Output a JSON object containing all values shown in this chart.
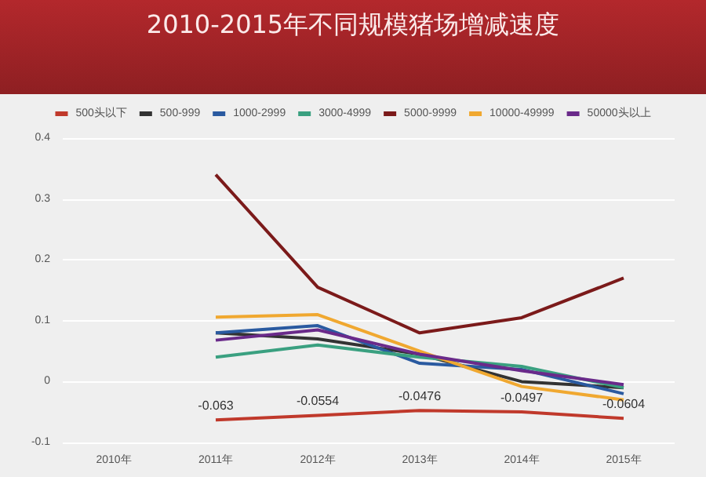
{
  "chart_data": {
    "type": "line",
    "title": "2010-2015年不同规模猪场增减速度",
    "categories": [
      "2010年",
      "2011年",
      "2012年",
      "2013年",
      "2014年",
      "2015年"
    ],
    "series": [
      {
        "name": "500头以下",
        "color": "#c0392b",
        "values": [
          null,
          -0.063,
          -0.0554,
          -0.0476,
          -0.0497,
          -0.0604
        ],
        "value_labels": [
          null,
          "-0.063",
          "-0.0554",
          "-0.0476",
          "-0.0497",
          "-0.0604"
        ]
      },
      {
        "name": "500-999",
        "color": "#333333",
        "values": [
          null,
          0.08,
          0.07,
          0.045,
          0.0,
          -0.01
        ]
      },
      {
        "name": "1000-2999",
        "color": "#2a5aa0",
        "values": [
          null,
          0.08,
          0.092,
          0.03,
          0.02,
          -0.02
        ]
      },
      {
        "name": "3000-4999",
        "color": "#3aa080",
        "values": [
          null,
          0.04,
          0.06,
          0.04,
          0.025,
          -0.01
        ]
      },
      {
        "name": "5000-9999",
        "color": "#7b1a1a",
        "values": [
          null,
          0.34,
          0.155,
          0.08,
          0.105,
          0.17
        ]
      },
      {
        "name": "10000-49999",
        "color": "#f0a830",
        "values": [
          null,
          0.106,
          0.11,
          0.05,
          -0.008,
          -0.03
        ]
      },
      {
        "name": "50000头以上",
        "color": "#6a2a8a",
        "values": [
          null,
          0.068,
          0.085,
          0.045,
          0.018,
          -0.005
        ]
      }
    ],
    "ylim": [
      -0.1,
      0.4
    ],
    "yticks": [
      -0.1,
      0,
      0.1,
      0.2,
      0.3,
      0.4
    ],
    "grid": "y",
    "legend": "top",
    "marker": "none",
    "line_style": "solid"
  }
}
